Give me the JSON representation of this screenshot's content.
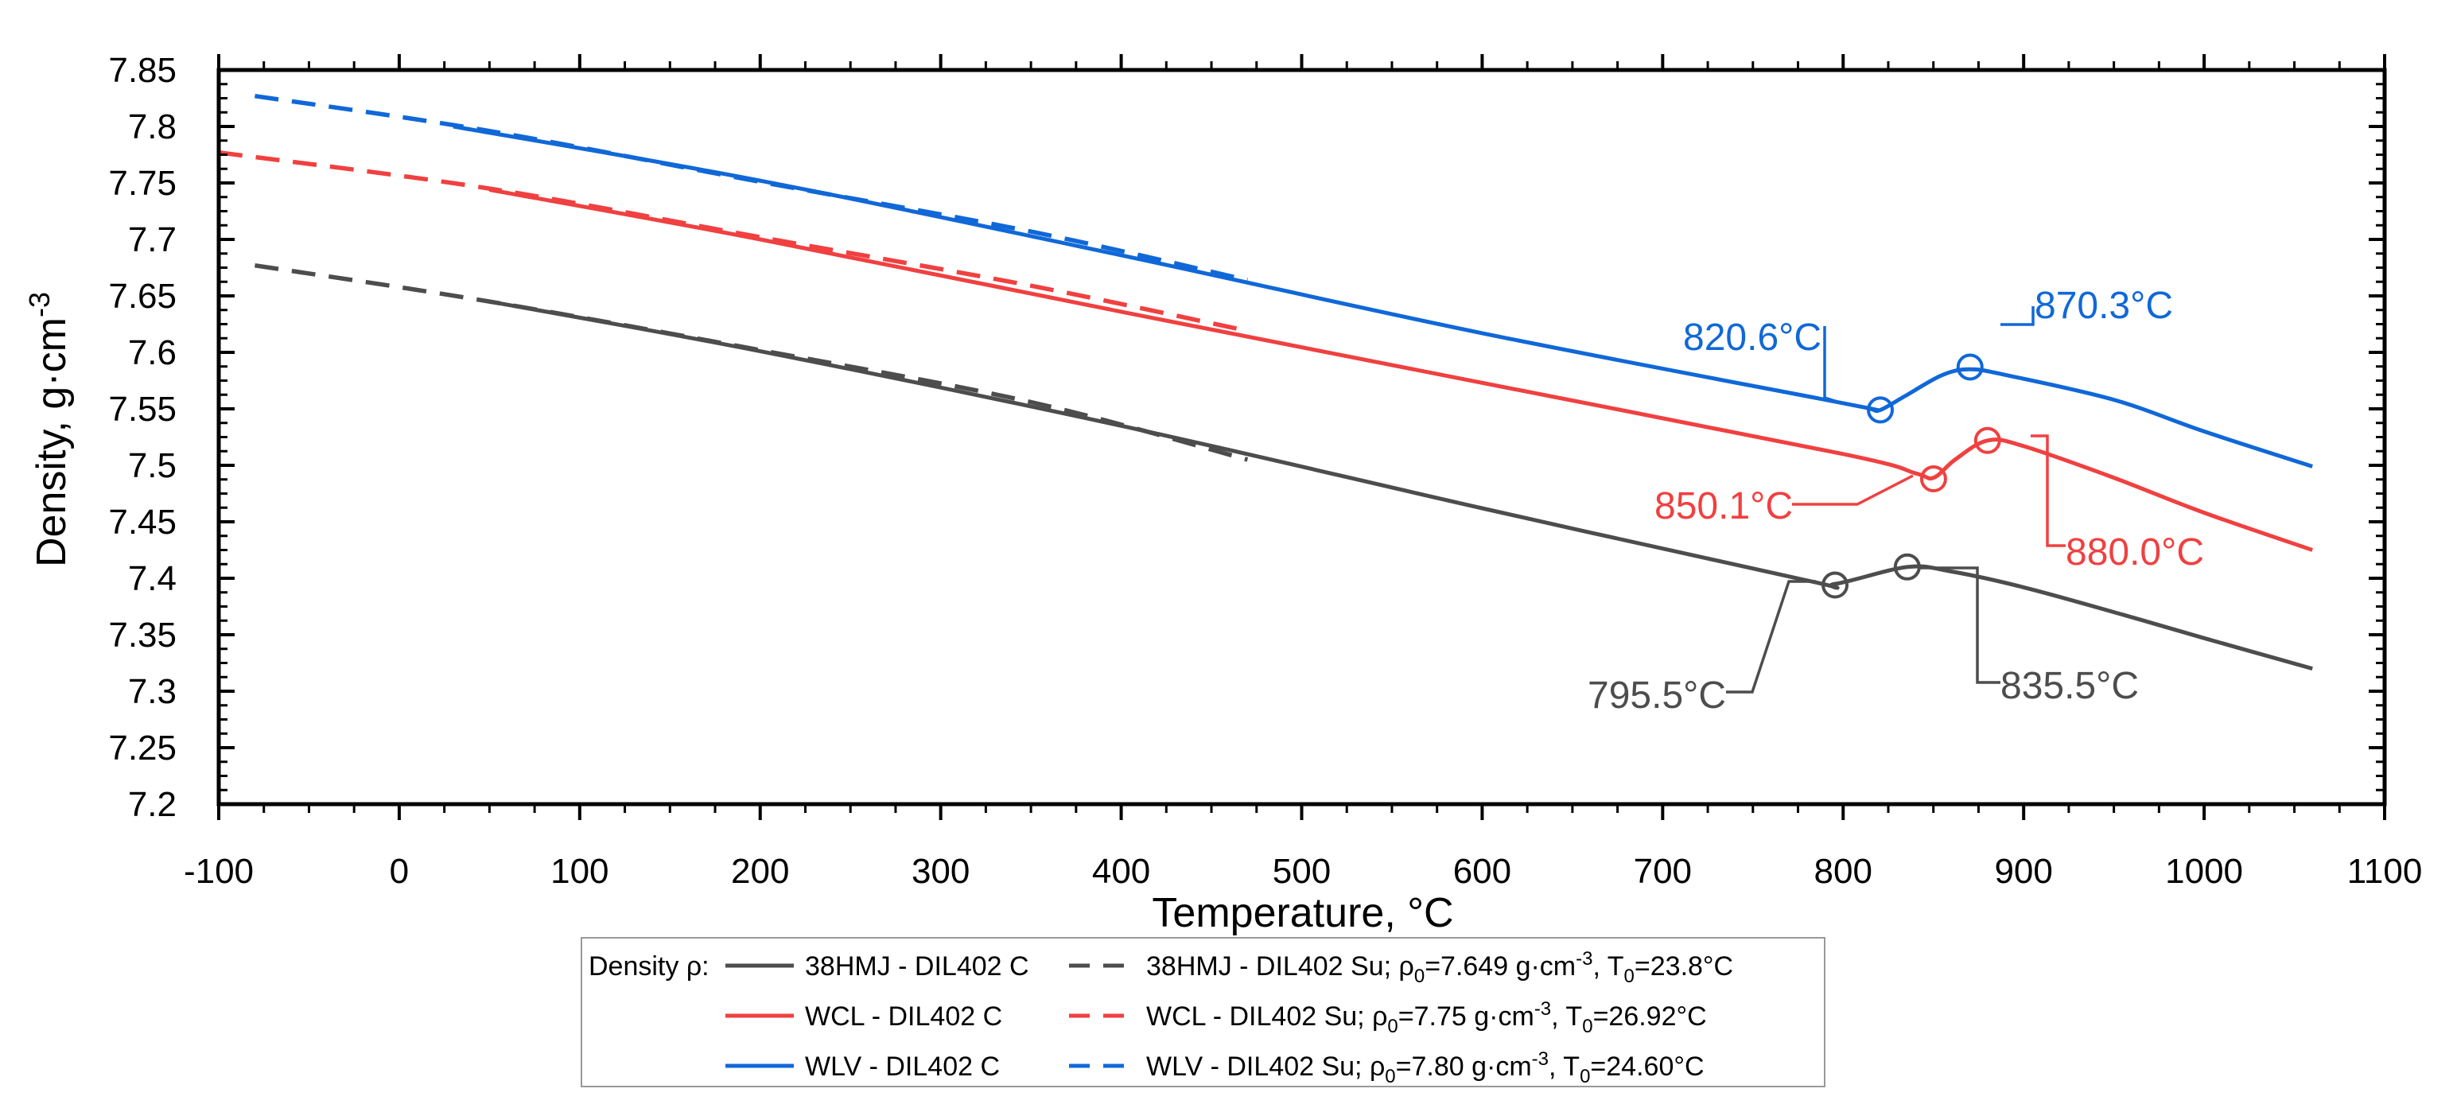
{
  "chart_data": {
    "type": "line",
    "title": "",
    "xlabel": "Temperature, °C",
    "ylabel_main": "Density, g·cm",
    "ylabel_sup": "-3",
    "xlim": [
      -100,
      1100
    ],
    "ylim": [
      7.2,
      7.85
    ],
    "x_ticks": [
      -100,
      0,
      100,
      200,
      300,
      400,
      500,
      600,
      700,
      800,
      900,
      1000,
      1100
    ],
    "x_tick_labels": [
      "-100",
      "0",
      "100",
      "200",
      "300",
      "400",
      "500",
      "600",
      "700",
      "800",
      "900",
      "1000",
      "1100"
    ],
    "y_ticks": [
      7.2,
      7.25,
      7.3,
      7.35,
      7.4,
      7.45,
      7.5,
      7.55,
      7.6,
      7.65,
      7.7,
      7.75,
      7.8,
      7.85
    ],
    "y_tick_labels": [
      "7.2",
      "7.25",
      "7.3",
      "7.35",
      "7.4",
      "7.45",
      "7.5",
      "7.55",
      "7.6",
      "7.65",
      "7.7",
      "7.75",
      "7.8",
      "7.85"
    ],
    "grid": false,
    "colors": {
      "black": "#4d4d4d",
      "red": "#f04040",
      "blue": "#1068d8"
    },
    "series": [
      {
        "name": "38HMJ - DIL402 C",
        "color": "black",
        "dash": false,
        "x": [
          50,
          200,
          400,
          600,
          780,
          795.5,
          835.5,
          860,
          900,
          950,
          1000,
          1060
        ],
        "y": [
          7.645,
          7.601,
          7.535,
          7.462,
          7.398,
          7.395,
          7.41,
          7.406,
          7.392,
          7.37,
          7.347,
          7.32
        ]
      },
      {
        "name": "38HMJ - DIL402 Su",
        "color": "black",
        "dash": true,
        "x": [
          -80,
          50,
          200,
          350,
          470
        ],
        "y": [
          7.677,
          7.645,
          7.602,
          7.556,
          7.505
        ]
      },
      {
        "name": "WCL - DIL402 C",
        "color": "red",
        "dash": false,
        "x": [
          50,
          200,
          400,
          600,
          800,
          840,
          850.1,
          862,
          880,
          900,
          950,
          1000,
          1060
        ],
        "y": [
          7.744,
          7.7,
          7.636,
          7.573,
          7.51,
          7.493,
          7.489,
          7.505,
          7.522,
          7.517,
          7.489,
          7.458,
          7.425
        ]
      },
      {
        "name": "WCL - DIL402 Su",
        "color": "red",
        "dash": true,
        "x": [
          -100,
          50,
          200,
          350,
          470
        ],
        "y": [
          7.777,
          7.745,
          7.702,
          7.659,
          7.619
        ]
      },
      {
        "name": "WLV - DIL402 C",
        "color": "blue",
        "dash": false,
        "x": [
          30,
          200,
          400,
          600,
          800,
          815,
          820.6,
          835,
          855,
          870.3,
          890,
          950,
          1000,
          1060
        ],
        "y": [
          7.8,
          7.752,
          7.686,
          7.617,
          7.555,
          7.55,
          7.549,
          7.562,
          7.58,
          7.585,
          7.58,
          7.558,
          7.53,
          7.499
        ]
      },
      {
        "name": "WLV - DIL402 Su",
        "color": "blue",
        "dash": true,
        "x": [
          -80,
          50,
          200,
          350,
          470
        ],
        "y": [
          7.827,
          7.796,
          7.751,
          7.707,
          7.664
        ]
      }
    ],
    "annotations": [
      {
        "text": "870.3°C",
        "color": "blue",
        "x": 870.3,
        "y": 7.587
      },
      {
        "text": "820.6°C",
        "color": "blue",
        "x": 820.6,
        "y": 7.549
      },
      {
        "text": "880.0°C",
        "color": "red",
        "x": 880.0,
        "y": 7.522
      },
      {
        "text": "850.1°C",
        "color": "red",
        "x": 850.1,
        "y": 7.488
      },
      {
        "text": "835.5°C",
        "color": "black",
        "x": 835.5,
        "y": 7.41
      },
      {
        "text": "795.5°C",
        "color": "black",
        "x": 795.5,
        "y": 7.394
      }
    ],
    "legend": {
      "title": "Density ρ:",
      "rows": [
        {
          "solid_label": "38HMJ - DIL402 C",
          "dash_label": "38HMJ - DIL402 Su;",
          "rho": "7.649",
          "t0": "23.8°C",
          "color": "black"
        },
        {
          "solid_label": "WCL - DIL402 C",
          "dash_label": "WCL - DIL402 Su;",
          "rho": "7.75",
          "t0": "26.92°C",
          "color": "red"
        },
        {
          "solid_label": "WLV - DIL402 C",
          "dash_label": "WLV - DIL402 Su;",
          "rho": "7.80",
          "t0": "24.60°C",
          "color": "blue"
        }
      ],
      "rho_prefix": "ρ",
      "rho_sub": "0",
      "rho_eq": "=",
      "unit_main": " g·cm",
      "unit_sup": "-3",
      "sep": ", ",
      "t_prefix": "T",
      "t_sub": "0",
      "t_eq": "=",
      "placement": "bottom-center"
    }
  }
}
